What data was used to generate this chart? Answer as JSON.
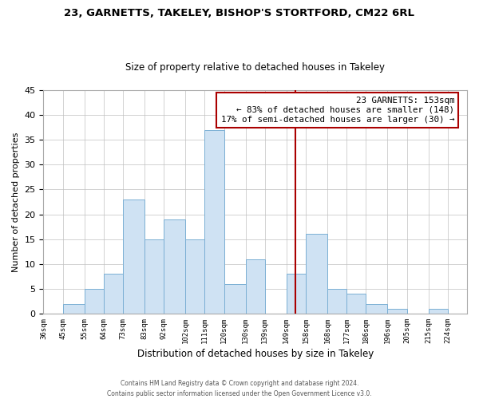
{
  "title": "23, GARNETTS, TAKELEY, BISHOP'S STORTFORD, CM22 6RL",
  "subtitle": "Size of property relative to detached houses in Takeley",
  "xlabel": "Distribution of detached houses by size in Takeley",
  "ylabel": "Number of detached properties",
  "bin_labels": [
    "36sqm",
    "45sqm",
    "55sqm",
    "64sqm",
    "73sqm",
    "83sqm",
    "92sqm",
    "102sqm",
    "111sqm",
    "120sqm",
    "130sqm",
    "139sqm",
    "149sqm",
    "158sqm",
    "168sqm",
    "177sqm",
    "186sqm",
    "196sqm",
    "205sqm",
    "215sqm",
    "224sqm"
  ],
  "bar_values": [
    0,
    2,
    5,
    8,
    23,
    15,
    19,
    15,
    37,
    6,
    11,
    0,
    8,
    16,
    5,
    4,
    2,
    1,
    0,
    1
  ],
  "bar_color": "#cfe2f3",
  "bar_edge_color": "#7bafd4",
  "bin_edges": [
    36,
    45,
    55,
    64,
    73,
    83,
    92,
    102,
    111,
    120,
    130,
    139,
    149,
    158,
    168,
    177,
    186,
    196,
    205,
    215,
    224
  ],
  "annotation_title": "23 GARNETTS: 153sqm",
  "annotation_line1": "← 83% of detached houses are smaller (148)",
  "annotation_line2": "17% of semi-detached houses are larger (30) →",
  "annotation_box_color": "#ffffff",
  "annotation_box_edge": "#aa0000",
  "ref_line_color": "#aa0000",
  "ref_line_x": 153,
  "ylim": [
    0,
    45
  ],
  "yticks": [
    0,
    5,
    10,
    15,
    20,
    25,
    30,
    35,
    40,
    45
  ],
  "footer_line1": "Contains HM Land Registry data © Crown copyright and database right 2024.",
  "footer_line2": "Contains public sector information licensed under the Open Government Licence v3.0.",
  "bg_color": "#ffffff",
  "grid_color": "#c0c0c0"
}
